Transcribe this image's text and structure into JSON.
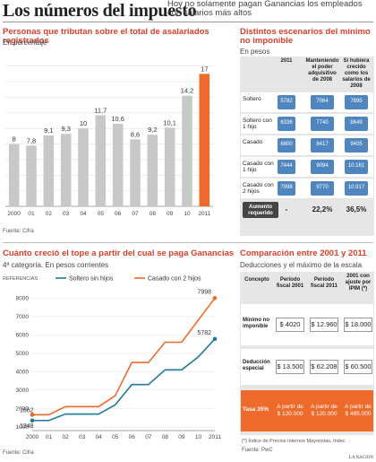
{
  "header": {
    "title": "Los números del impuesto",
    "subtitle": "Hoy no solamente pagan Ganancias los empleados con salarios más altos"
  },
  "colors": {
    "accent": "#d6402a",
    "bar_gray": "#c8c8c8",
    "bar_orange": "#ee6a2b",
    "line_blue": "#1f7a99",
    "line_orange": "#ee6a2b",
    "cell_blue": "#4f86c0",
    "table_bg": "#e6e6e6",
    "dark": "#333333"
  },
  "chart_data": [
    {
      "type": "bar",
      "title": "Personas que tributan sobre el total de asalariados registrados",
      "subtitle": "En porcentaje",
      "source": "Fuente: Cifra",
      "categories": [
        "2000",
        "01",
        "02",
        "03",
        "04",
        "05",
        "06",
        "07",
        "08",
        "09",
        "10",
        "2011"
      ],
      "values": [
        8,
        7.8,
        9.1,
        9.3,
        10,
        11.7,
        10.6,
        8.6,
        9.2,
        10.1,
        14.2,
        17
      ],
      "value_labels": [
        "8",
        "7,8",
        "9,1",
        "9,3",
        "10",
        "11,7",
        "10,6",
        "8,6",
        "9,2",
        "10,1",
        "14,2",
        "17"
      ],
      "ylim": [
        0,
        19
      ],
      "highlight_last": true
    },
    {
      "type": "line",
      "title": "Cuánto creció el tope a partir del cual se paga Ganancias",
      "subtitle": "4ª categoría. En pesos corrientes",
      "source": "Fuente: Cifra",
      "ylabel": "REFERENCIAS",
      "x": [
        "2000",
        "01",
        "02",
        "03",
        "04",
        "05",
        "06",
        "07",
        "08",
        "09",
        "10",
        "2011"
      ],
      "yticks": [
        1000,
        2000,
        3000,
        4000,
        5000,
        6000,
        7000,
        8000
      ],
      "ylim": [
        800,
        8500
      ],
      "series": [
        {
          "name": "Soltero sin hijos",
          "values": [
            1348,
            1348,
            1700,
            1700,
            1700,
            2200,
            3300,
            3300,
            4100,
            4100,
            4800,
            5782
          ],
          "start_label": "1348",
          "end_label": "5782"
        },
        {
          "name": "Casado con 2 hijos",
          "values": [
            1662,
            1662,
            2100,
            2100,
            2100,
            2700,
            4500,
            4500,
            5600,
            5600,
            6800,
            7998
          ],
          "start_label": "1662",
          "end_label": "7998"
        }
      ]
    }
  ],
  "scenarios": {
    "title": "Distintos escenarios del mínimo no imponible",
    "subtitle": "En pesos",
    "col_headers": [
      "2011",
      "Manteniendo el poder adquisitivo de 2008",
      "Si hubiera crecido como los salarios de 2008"
    ],
    "rows": [
      {
        "label": "Soltero",
        "values": [
          "5782",
          "7064",
          "7895"
        ]
      },
      {
        "label": "Soltero con 1 hijo",
        "values": [
          "6336",
          "7740",
          "8649"
        ]
      },
      {
        "label": "Casado",
        "values": [
          "6800",
          "8417",
          "9405"
        ]
      },
      {
        "label": "Casado con 1 hijo",
        "values": [
          "7444",
          "9094",
          "10.161"
        ]
      },
      {
        "label": "Casado con 2 hijos",
        "values": [
          "7998",
          "9770",
          "10.917"
        ]
      }
    ],
    "footer_label": "Aumento requerido",
    "footer_values": [
      "-",
      "22,2%",
      "36,5%"
    ]
  },
  "comparison": {
    "title": "Comparación entre 2001 y 2011",
    "subtitle": "Deducciones y el máximo de la escala",
    "headers": [
      "Concepto",
      "Período fiscal 2001",
      "Período fiscal 2011",
      "2001 con ajuste por IPIM (*)"
    ],
    "rows": [
      {
        "label": "Mínimo no imponible",
        "values": [
          "$ 4020",
          "$ 12.960",
          "$ 18.000"
        ]
      },
      {
        "label": "Deducción especial",
        "values": [
          "$ 13.500",
          "$ 62.208",
          "$ 60.500"
        ]
      }
    ],
    "tax_row": {
      "label": "Tasa 35%",
      "values": [
        "A partir de $ 120.000",
        "A partir de $ 120.000",
        "A partir de $ 485.000"
      ]
    },
    "note": "(*) Índice de Precios Internos Mayoristas, Indec",
    "source": "Fuente: PwC"
  },
  "credit": "LA NACION"
}
